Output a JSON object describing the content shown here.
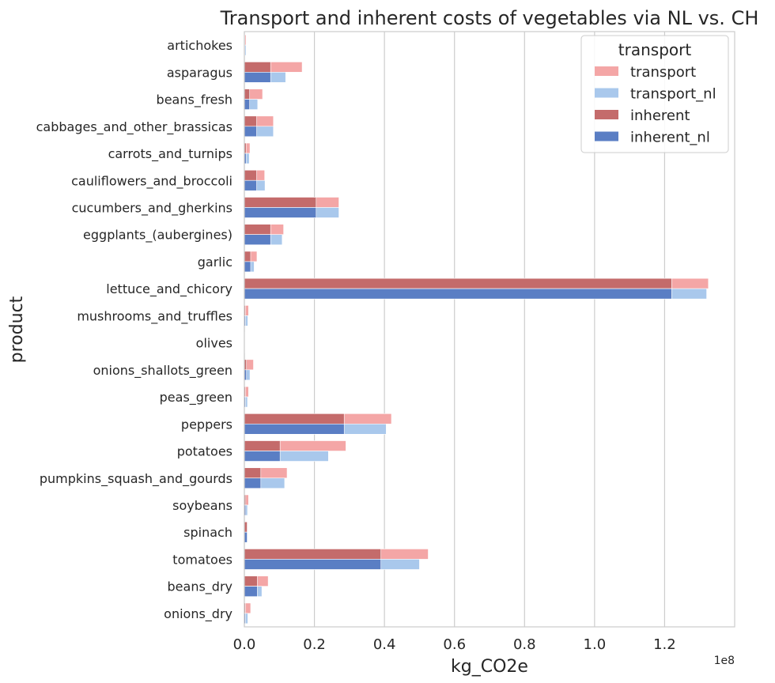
{
  "chart_data": {
    "type": "bar",
    "orientation": "horizontal",
    "title": "Transport and inherent costs of vegetables via NL vs. CH",
    "xlabel": "kg_CO2e",
    "ylabel": "product",
    "x_scale_label": "1e8",
    "xlim": [
      0,
      1.4
    ],
    "x_ticks": [
      "0.0",
      "0.2",
      "0.4",
      "0.6",
      "0.8",
      "1.0",
      "1.2"
    ],
    "x_tick_values": [
      0,
      0.2,
      0.4,
      0.6,
      0.8,
      1.0,
      1.2
    ],
    "grid": "vertical",
    "legend": {
      "title": "transport",
      "placement": "top-right",
      "entries": [
        "transport",
        "transport_nl",
        "inherent",
        "inherent_nl"
      ]
    },
    "colors": {
      "transport": "#f4a6a6",
      "transport_nl": "#a9c8ec",
      "inherent": "#c46b6b",
      "inherent_nl": "#5a7ec4"
    },
    "categories": [
      "artichokes",
      "asparagus",
      "beans_fresh",
      "cabbages_and_other_brassicas",
      "carrots_and_turnips",
      "cauliflowers_and_broccoli",
      "cucumbers_and_gherkins",
      "eggplants_(aubergines)",
      "garlic",
      "lettuce_and_chicory",
      "mushrooms_and_truffles",
      "olives",
      "onions_shallots_green",
      "peas_green",
      "peppers",
      "potatoes",
      "pumpkins_squash_and_gourds",
      "soybeans",
      "spinach",
      "tomatoes",
      "beans_dry",
      "onions_dry"
    ],
    "series": [
      {
        "name": "transport",
        "values": [
          0.005,
          0.165,
          0.052,
          0.083,
          0.016,
          0.058,
          0.27,
          0.112,
          0.036,
          1.325,
          0.012,
          0.001,
          0.026,
          0.012,
          0.42,
          0.29,
          0.122,
          0.012,
          0.006,
          0.525,
          0.068,
          0.018
        ]
      },
      {
        "name": "transport_nl",
        "values": [
          0.005,
          0.118,
          0.038,
          0.083,
          0.014,
          0.059,
          0.27,
          0.108,
          0.028,
          1.32,
          0.01,
          0.001,
          0.016,
          0.009,
          0.405,
          0.24,
          0.115,
          0.009,
          0.008,
          0.5,
          0.05,
          0.01
        ]
      },
      {
        "name": "inherent",
        "values": [
          0.002,
          0.075,
          0.015,
          0.035,
          0.005,
          0.035,
          0.205,
          0.075,
          0.018,
          1.22,
          0.003,
          0.001,
          0.006,
          0.003,
          0.285,
          0.102,
          0.047,
          0.004,
          0.008,
          0.39,
          0.037,
          0.003
        ]
      },
      {
        "name": "inherent_nl",
        "values": [
          0.002,
          0.075,
          0.015,
          0.035,
          0.005,
          0.035,
          0.205,
          0.075,
          0.018,
          1.22,
          0.003,
          0.001,
          0.006,
          0.003,
          0.285,
          0.102,
          0.047,
          0.004,
          0.008,
          0.39,
          0.037,
          0.003
        ]
      }
    ]
  }
}
